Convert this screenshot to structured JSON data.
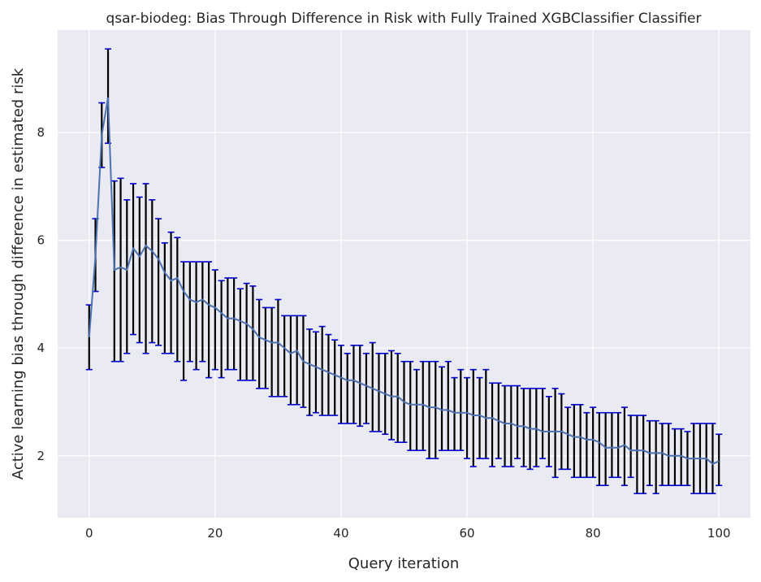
{
  "chart_data": {
    "type": "line",
    "title": "qsar-biodeg: Bias Through Difference in Risk with Fully Trained XGBClassifier Classifier",
    "xlabel": "Query iteration",
    "ylabel": "Active learning bias through difference in estimated risk",
    "xlim": [
      -5,
      105
    ],
    "ylim": [
      0.85,
      9.9
    ],
    "xticks": [
      0,
      20,
      40,
      60,
      80,
      100
    ],
    "yticks": [
      2,
      4,
      6,
      8
    ],
    "grid": true,
    "series": [
      {
        "line_color": "#4c72b0",
        "errorbar_color": "#000000",
        "cap_color": "#0000cc",
        "x": [
          0,
          1,
          2,
          3,
          4,
          5,
          6,
          7,
          8,
          9,
          10,
          11,
          12,
          13,
          14,
          15,
          16,
          17,
          18,
          19,
          20,
          21,
          22,
          23,
          24,
          25,
          26,
          27,
          28,
          29,
          30,
          31,
          32,
          33,
          34,
          35,
          36,
          37,
          38,
          39,
          40,
          41,
          42,
          43,
          44,
          45,
          46,
          47,
          48,
          49,
          50,
          51,
          52,
          53,
          54,
          55,
          56,
          57,
          58,
          59,
          60,
          61,
          62,
          63,
          64,
          65,
          66,
          67,
          68,
          69,
          70,
          71,
          72,
          73,
          74,
          75,
          76,
          77,
          78,
          79,
          80,
          81,
          82,
          83,
          84,
          85,
          86,
          87,
          88,
          89,
          90,
          91,
          92,
          93,
          94,
          95,
          96,
          97,
          98,
          99,
          100
        ],
        "mean": [
          4.2,
          5.7,
          7.95,
          8.65,
          5.45,
          5.5,
          5.45,
          5.85,
          5.7,
          5.9,
          5.8,
          5.65,
          5.4,
          5.25,
          5.3,
          5.05,
          4.9,
          4.85,
          4.9,
          4.8,
          4.75,
          4.65,
          4.55,
          4.55,
          4.5,
          4.45,
          4.35,
          4.2,
          4.15,
          4.1,
          4.1,
          4.0,
          3.9,
          3.95,
          3.75,
          3.7,
          3.65,
          3.6,
          3.55,
          3.5,
          3.45,
          3.4,
          3.4,
          3.35,
          3.3,
          3.25,
          3.2,
          3.15,
          3.1,
          3.1,
          3.0,
          2.95,
          2.95,
          2.95,
          2.9,
          2.9,
          2.85,
          2.85,
          2.8,
          2.8,
          2.8,
          2.75,
          2.75,
          2.7,
          2.7,
          2.65,
          2.6,
          2.6,
          2.55,
          2.55,
          2.5,
          2.5,
          2.45,
          2.45,
          2.45,
          2.45,
          2.4,
          2.35,
          2.35,
          2.3,
          2.3,
          2.25,
          2.15,
          2.15,
          2.15,
          2.2,
          2.1,
          2.1,
          2.1,
          2.05,
          2.05,
          2.05,
          2.0,
          2.0,
          2.0,
          1.95,
          1.95,
          1.95,
          1.95,
          1.85,
          1.9
        ],
        "upper": [
          4.8,
          6.4,
          8.55,
          9.55,
          7.1,
          7.15,
          6.75,
          7.05,
          6.8,
          7.05,
          6.75,
          6.4,
          5.95,
          6.15,
          6.05,
          5.6,
          5.6,
          5.6,
          5.6,
          5.6,
          5.45,
          5.25,
          5.3,
          5.3,
          5.1,
          5.2,
          5.15,
          4.9,
          4.75,
          4.75,
          4.9,
          4.6,
          4.6,
          4.6,
          4.6,
          4.35,
          4.3,
          4.4,
          4.25,
          4.15,
          4.05,
          3.9,
          4.05,
          4.05,
          3.9,
          4.1,
          3.9,
          3.9,
          3.95,
          3.9,
          3.75,
          3.75,
          3.6,
          3.75,
          3.75,
          3.75,
          3.65,
          3.75,
          3.45,
          3.6,
          3.45,
          3.6,
          3.45,
          3.6,
          3.35,
          3.35,
          3.3,
          3.3,
          3.3,
          3.25,
          3.25,
          3.25,
          3.25,
          3.1,
          3.25,
          3.15,
          2.9,
          2.95,
          2.95,
          2.8,
          2.9,
          2.8,
          2.8,
          2.8,
          2.8,
          2.9,
          2.75,
          2.75,
          2.75,
          2.65,
          2.65,
          2.6,
          2.6,
          2.5,
          2.5,
          2.45,
          2.6,
          2.6,
          2.6,
          2.6,
          2.4
        ],
        "lower": [
          3.6,
          5.05,
          7.35,
          7.8,
          3.75,
          3.75,
          3.9,
          4.25,
          4.1,
          3.9,
          4.1,
          4.05,
          3.9,
          3.9,
          3.75,
          3.4,
          3.75,
          3.6,
          3.75,
          3.45,
          3.6,
          3.45,
          3.6,
          3.6,
          3.4,
          3.4,
          3.4,
          3.25,
          3.25,
          3.1,
          3.1,
          3.1,
          2.95,
          2.95,
          2.9,
          2.75,
          2.8,
          2.75,
          2.75,
          2.75,
          2.6,
          2.6,
          2.6,
          2.55,
          2.6,
          2.45,
          2.45,
          2.4,
          2.3,
          2.25,
          2.25,
          2.1,
          2.1,
          2.1,
          1.95,
          1.95,
          2.1,
          2.1,
          2.1,
          2.1,
          1.95,
          1.8,
          1.95,
          1.95,
          1.8,
          1.95,
          1.8,
          1.8,
          1.95,
          1.8,
          1.75,
          1.8,
          1.95,
          1.8,
          1.6,
          1.75,
          1.75,
          1.6,
          1.6,
          1.6,
          1.6,
          1.45,
          1.45,
          1.6,
          1.6,
          1.45,
          1.6,
          1.3,
          1.3,
          1.45,
          1.3,
          1.45,
          1.45,
          1.45,
          1.45,
          1.45,
          1.3,
          1.3,
          1.3,
          1.3,
          1.45
        ]
      }
    ]
  }
}
